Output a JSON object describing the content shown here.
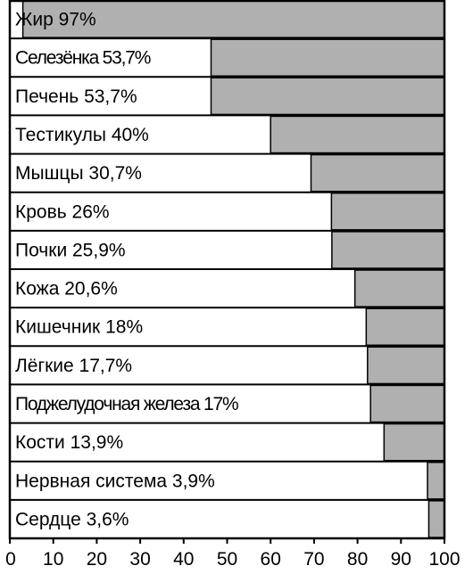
{
  "chart_data": {
    "type": "bar",
    "orientation": "horizontal",
    "categories": [
      "Жир 97%",
      "Селезёнка 53,7%",
      "Печень 53,7%",
      "Тестикулы 40%",
      "Мышцы 30,7%",
      "Кровь 26%",
      "Почки 25,9%",
      "Кожа 20,6%",
      "Кишечник 18%",
      "Лёгкие 17,7%",
      "Поджелудочная железа 17%",
      "Кости 13,9%",
      "Нервная система 3,9%",
      "Сердце 3,6%"
    ],
    "values": [
      97,
      53.7,
      53.7,
      40,
      30.7,
      26,
      25.9,
      20.6,
      18,
      17.7,
      17,
      13.9,
      3.9,
      3.6
    ],
    "xlim": [
      0,
      100
    ],
    "xticks": [
      "0",
      "10",
      "20",
      "30",
      "40",
      "50",
      "60",
      "70",
      "80",
      "90",
      "100"
    ],
    "bar_color": "#b0b0b0",
    "background_color": "#ffffff",
    "border_color": "#000000"
  }
}
